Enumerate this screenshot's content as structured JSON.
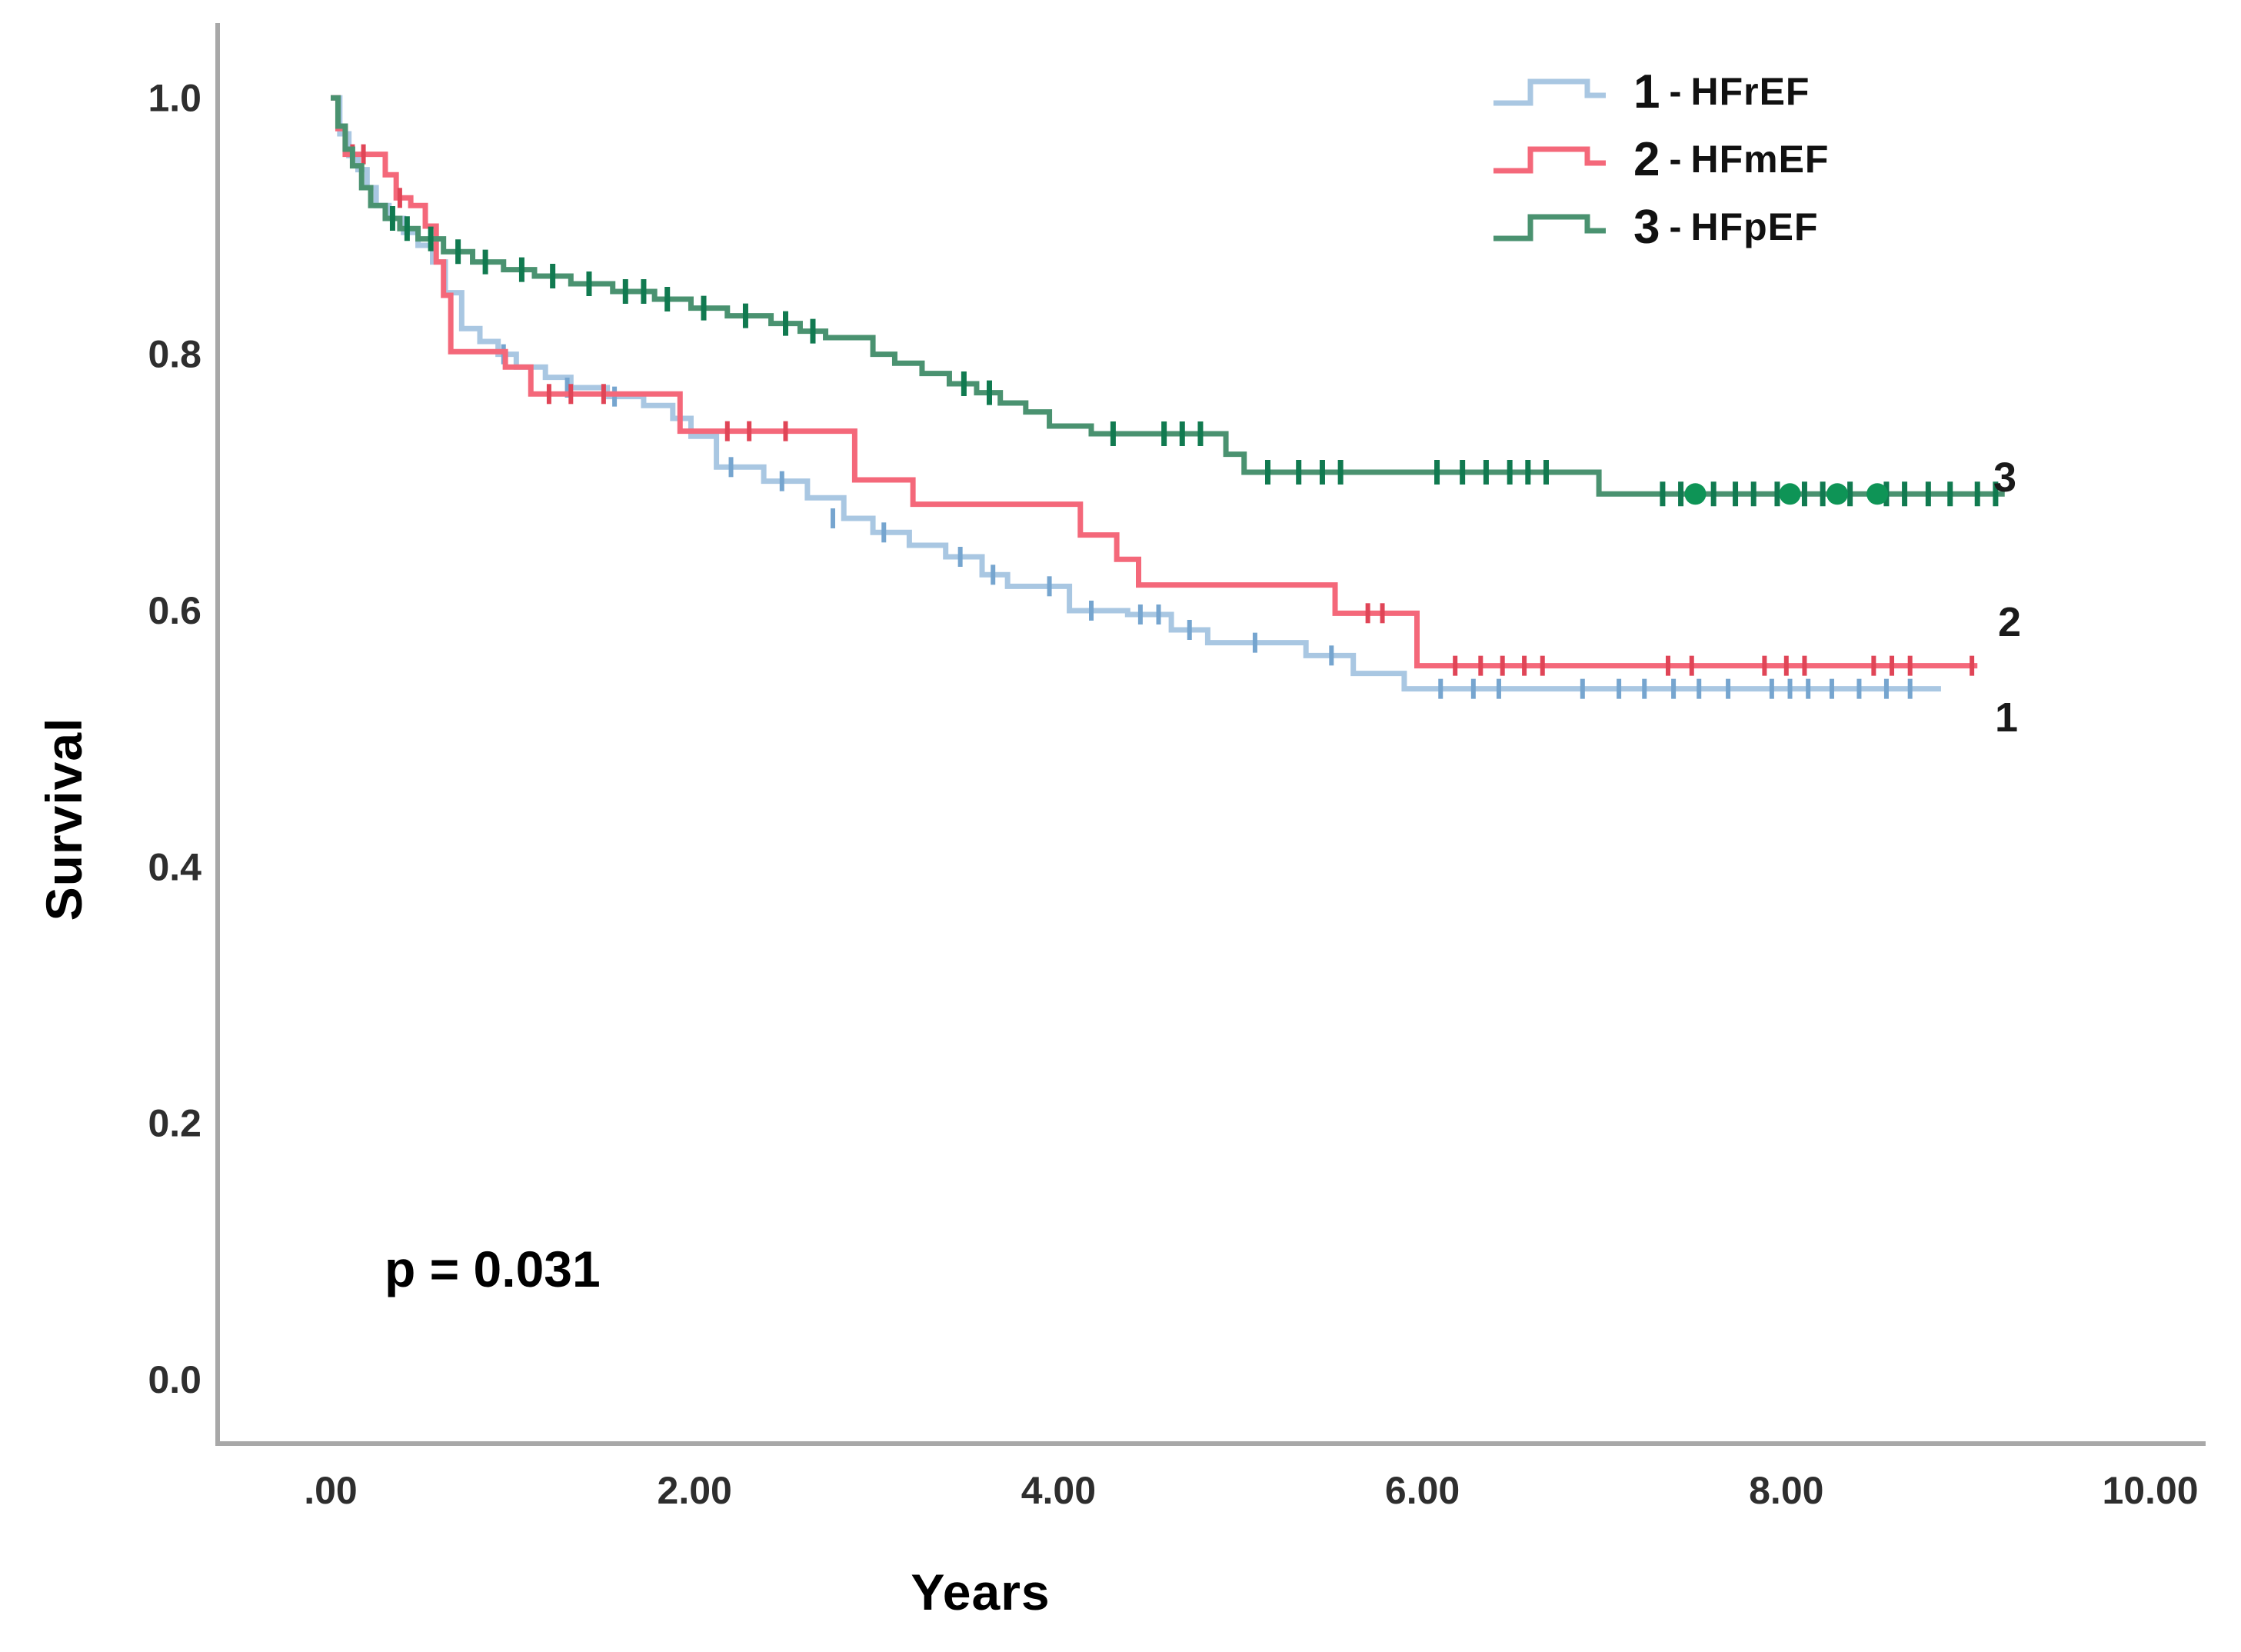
{
  "chart_data": {
    "type": "line",
    "subtype": "kaplan-meier-step-curves",
    "title": "",
    "xlabel": "Years",
    "ylabel": "Survival",
    "annotation": "p = 0.031",
    "grid": false,
    "legend_position": "top-right",
    "xlim": [
      0,
      10
    ],
    "ylim": [
      0.0,
      1.0
    ],
    "axis_color": "#a8a8a8",
    "tick_label_color": "#2e2e2e",
    "x_ticks": [
      {
        "label": ".00",
        "t": 0
      },
      {
        "label": "2.00",
        "t": 2
      },
      {
        "label": "4.00",
        "t": 4
      },
      {
        "label": "6.00",
        "t": 6
      },
      {
        "label": "8.00",
        "t": 8
      },
      {
        "label": "10.00",
        "t": 10
      }
    ],
    "y_ticks": [
      {
        "label": "1.0",
        "s": 1.0
      },
      {
        "label": "0.8",
        "s": 0.8
      },
      {
        "label": "0.6",
        "s": 0.6
      },
      {
        "label": "0.4",
        "s": 0.4
      },
      {
        "label": "0.2",
        "s": 0.2
      },
      {
        "label": "0.0",
        "s": 0.0
      }
    ],
    "series": [
      {
        "id": 1,
        "key": "HFrEF",
        "end_label": "1",
        "legend": {
          "number": "1",
          "separator": "-",
          "name": "HFrEF"
        },
        "color": "#a9c7e2",
        "censor_color": "#76a5cf",
        "end_t": 8.85,
        "steps": [
          [
            0,
            1.0
          ],
          [
            0.05,
            0.972
          ],
          [
            0.1,
            0.955
          ],
          [
            0.15,
            0.944
          ],
          [
            0.2,
            0.93
          ],
          [
            0.25,
            0.916
          ],
          [
            0.32,
            0.906
          ],
          [
            0.4,
            0.895
          ],
          [
            0.48,
            0.885
          ],
          [
            0.56,
            0.872
          ],
          [
            0.63,
            0.848
          ],
          [
            0.72,
            0.82
          ],
          [
            0.82,
            0.81
          ],
          [
            0.92,
            0.8
          ],
          [
            1.02,
            0.79
          ],
          [
            1.18,
            0.782
          ],
          [
            1.32,
            0.774
          ],
          [
            1.52,
            0.767
          ],
          [
            1.72,
            0.76
          ],
          [
            1.88,
            0.75
          ],
          [
            1.98,
            0.736
          ],
          [
            2.12,
            0.712
          ],
          [
            2.38,
            0.701
          ],
          [
            2.62,
            0.688
          ],
          [
            2.82,
            0.672
          ],
          [
            2.98,
            0.661
          ],
          [
            3.18,
            0.651
          ],
          [
            3.38,
            0.642
          ],
          [
            3.58,
            0.628
          ],
          [
            3.72,
            0.619
          ],
          [
            4.06,
            0.6
          ],
          [
            4.38,
            0.597
          ],
          [
            4.62,
            0.585
          ],
          [
            4.82,
            0.575
          ],
          [
            5.36,
            0.565
          ],
          [
            5.62,
            0.551
          ],
          [
            5.9,
            0.539
          ]
        ],
        "censors": [
          [
            0.95,
            0.8
          ],
          [
            1.3,
            0.774
          ],
          [
            1.56,
            0.767
          ],
          [
            2.2,
            0.712
          ],
          [
            2.48,
            0.701
          ],
          [
            2.76,
            0.672
          ],
          [
            3.04,
            0.661
          ],
          [
            3.46,
            0.642
          ],
          [
            3.64,
            0.628
          ],
          [
            3.95,
            0.619
          ],
          [
            4.18,
            0.6
          ],
          [
            4.45,
            0.597
          ],
          [
            4.55,
            0.597
          ],
          [
            4.72,
            0.585
          ],
          [
            5.08,
            0.575
          ],
          [
            5.5,
            0.565
          ],
          [
            6.1,
            0.539
          ],
          [
            6.28,
            0.539
          ],
          [
            6.42,
            0.539
          ],
          [
            6.88,
            0.539
          ],
          [
            7.08,
            0.539
          ],
          [
            7.22,
            0.539
          ],
          [
            7.38,
            0.539
          ],
          [
            7.52,
            0.539
          ],
          [
            7.68,
            0.539
          ],
          [
            7.92,
            0.539
          ],
          [
            8.02,
            0.539
          ],
          [
            8.12,
            0.539
          ],
          [
            8.25,
            0.539
          ],
          [
            8.4,
            0.539
          ],
          [
            8.55,
            0.539
          ],
          [
            8.68,
            0.539
          ]
        ]
      },
      {
        "id": 2,
        "key": "HFmEF",
        "end_label": "2",
        "legend": {
          "number": "2",
          "separator": "-",
          "name": "HFmEF"
        },
        "color": "#f4687a",
        "censor_color": "#e04557",
        "end_t": 9.05,
        "steps": [
          [
            0,
            1.0
          ],
          [
            0.04,
            0.976
          ],
          [
            0.08,
            0.956
          ],
          [
            0.3,
            0.94
          ],
          [
            0.36,
            0.922
          ],
          [
            0.44,
            0.916
          ],
          [
            0.52,
            0.9
          ],
          [
            0.58,
            0.872
          ],
          [
            0.62,
            0.846
          ],
          [
            0.66,
            0.802
          ],
          [
            0.96,
            0.79
          ],
          [
            1.1,
            0.769
          ],
          [
            1.92,
            0.74
          ],
          [
            2.88,
            0.702
          ],
          [
            3.2,
            0.683
          ],
          [
            4.12,
            0.659
          ],
          [
            4.32,
            0.64
          ],
          [
            4.44,
            0.62
          ],
          [
            5.52,
            0.598
          ],
          [
            5.97,
            0.557
          ]
        ],
        "censors": [
          [
            0.12,
            0.956
          ],
          [
            0.18,
            0.956
          ],
          [
            0.38,
            0.922
          ],
          [
            1.2,
            0.769
          ],
          [
            1.32,
            0.769
          ],
          [
            1.5,
            0.769
          ],
          [
            2.18,
            0.74
          ],
          [
            2.3,
            0.74
          ],
          [
            2.5,
            0.74
          ],
          [
            5.7,
            0.598
          ],
          [
            5.78,
            0.598
          ],
          [
            6.18,
            0.557
          ],
          [
            6.32,
            0.557
          ],
          [
            6.44,
            0.557
          ],
          [
            6.56,
            0.557
          ],
          [
            6.66,
            0.557
          ],
          [
            7.35,
            0.557
          ],
          [
            7.48,
            0.557
          ],
          [
            7.88,
            0.557
          ],
          [
            8.0,
            0.557
          ],
          [
            8.1,
            0.557
          ],
          [
            8.48,
            0.557
          ],
          [
            8.58,
            0.557
          ],
          [
            8.68,
            0.557
          ],
          [
            9.02,
            0.557
          ]
        ]
      },
      {
        "id": 3,
        "key": "HFpEF",
        "end_label": "3",
        "legend": {
          "number": "3",
          "separator": "-",
          "name": "HFpEF"
        },
        "color": "#4a9270",
        "censor_color": "#117a50",
        "dot_color": "#0e9456",
        "end_t": 9.2,
        "steps": [
          [
            0,
            1.0
          ],
          [
            0.04,
            0.978
          ],
          [
            0.08,
            0.96
          ],
          [
            0.12,
            0.947
          ],
          [
            0.17,
            0.93
          ],
          [
            0.22,
            0.916
          ],
          [
            0.3,
            0.906
          ],
          [
            0.38,
            0.898
          ],
          [
            0.48,
            0.89
          ],
          [
            0.62,
            0.88
          ],
          [
            0.78,
            0.872
          ],
          [
            0.95,
            0.866
          ],
          [
            1.12,
            0.861
          ],
          [
            1.32,
            0.855
          ],
          [
            1.55,
            0.849
          ],
          [
            1.78,
            0.843
          ],
          [
            1.98,
            0.836
          ],
          [
            2.18,
            0.83
          ],
          [
            2.42,
            0.824
          ],
          [
            2.58,
            0.818
          ],
          [
            2.72,
            0.813
          ],
          [
            2.98,
            0.8
          ],
          [
            3.1,
            0.793
          ],
          [
            3.25,
            0.785
          ],
          [
            3.4,
            0.777
          ],
          [
            3.55,
            0.77
          ],
          [
            3.68,
            0.762
          ],
          [
            3.82,
            0.755
          ],
          [
            3.95,
            0.744
          ],
          [
            4.18,
            0.738
          ],
          [
            4.92,
            0.722
          ],
          [
            5.02,
            0.708
          ],
          [
            6.97,
            0.691
          ]
        ],
        "censors": [
          [
            0.34,
            0.906
          ],
          [
            0.42,
            0.898
          ],
          [
            0.55,
            0.89
          ],
          [
            0.7,
            0.88
          ],
          [
            0.85,
            0.872
          ],
          [
            1.05,
            0.866
          ],
          [
            1.22,
            0.861
          ],
          [
            1.42,
            0.855
          ],
          [
            1.62,
            0.849
          ],
          [
            1.72,
            0.849
          ],
          [
            1.85,
            0.843
          ],
          [
            2.05,
            0.836
          ],
          [
            2.28,
            0.83
          ],
          [
            2.5,
            0.824
          ],
          [
            2.65,
            0.818
          ],
          [
            3.48,
            0.777
          ],
          [
            3.62,
            0.77
          ],
          [
            4.3,
            0.738
          ],
          [
            4.58,
            0.738
          ],
          [
            4.68,
            0.738
          ],
          [
            4.78,
            0.738
          ],
          [
            5.15,
            0.708
          ],
          [
            5.32,
            0.708
          ],
          [
            5.45,
            0.708
          ],
          [
            5.55,
            0.708
          ],
          [
            6.08,
            0.708
          ],
          [
            6.22,
            0.708
          ],
          [
            6.35,
            0.708
          ],
          [
            6.48,
            0.708
          ],
          [
            6.58,
            0.708
          ],
          [
            6.68,
            0.708
          ],
          [
            7.32,
            0.691
          ],
          [
            7.42,
            0.691
          ],
          [
            7.6,
            0.691
          ],
          [
            7.72,
            0.691
          ],
          [
            7.82,
            0.691
          ],
          [
            7.95,
            0.691
          ],
          [
            8.1,
            0.691
          ],
          [
            8.2,
            0.691
          ],
          [
            8.35,
            0.691
          ],
          [
            8.55,
            0.691
          ],
          [
            8.65,
            0.691
          ],
          [
            8.78,
            0.691
          ],
          [
            8.9,
            0.691
          ],
          [
            9.05,
            0.691
          ],
          [
            9.15,
            0.691
          ]
        ],
        "dots": [
          [
            7.5,
            0.691
          ],
          [
            8.02,
            0.691
          ],
          [
            8.28,
            0.691
          ],
          [
            8.5,
            0.691
          ]
        ]
      }
    ]
  }
}
